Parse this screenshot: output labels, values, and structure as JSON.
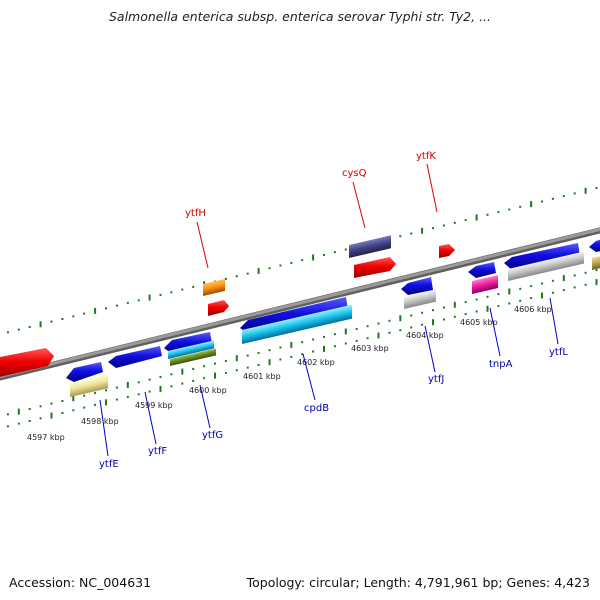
{
  "title": "Salmonella enterica subsp. enterica serovar Typhi str. Ty2, ...",
  "footer": {
    "accession": "Accession: NC_004631",
    "summary": "Topology: circular; Length: 4,791,961 bp; Genes: 4,423"
  },
  "scale_labels": [
    "4597 kbp",
    "4598 kbp",
    "4599 kbp",
    "4600 kbp",
    "4601 kbp",
    "4602 kbp",
    "4603 kbp",
    "4604 kbp",
    "4605 kbp",
    "4606 kbp"
  ],
  "gene_labels": {
    "above": [
      "ytfH",
      "cysQ",
      "ytfK"
    ],
    "below": [
      "ytfE",
      "ytfF",
      "ytfG",
      "cpdB",
      "ytfJ",
      "tnpA",
      "ytfL"
    ]
  },
  "colors": {
    "backbone": "#8a8a8a",
    "tick": "#1e7a1e",
    "forward_red": "#e60000",
    "blue": "#1010e0",
    "leader_red": "#e00000",
    "leader_blue": "#0000d0",
    "label_red": "#cc0000",
    "label_blue": "#0000aa"
  }
}
